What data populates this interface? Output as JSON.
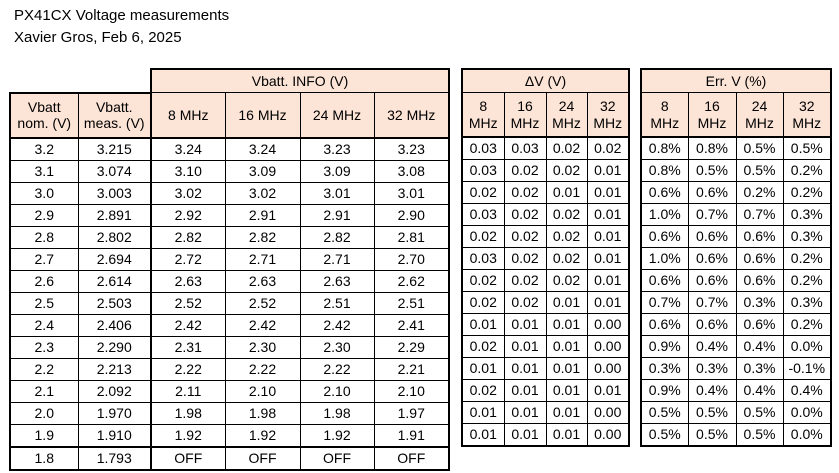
{
  "page": {
    "title": "PX41CX Voltage measurements",
    "subtitle": "Xavier Gros, Feb 6, 2025"
  },
  "colors": {
    "header_fill": "#FCE4D6",
    "border": "#000000",
    "text": "#000000",
    "background": "#FFFFFF"
  },
  "tables": {
    "main": {
      "group_header": "Vbatt. INFO (V)",
      "col_headers": [
        "Vbatt\nnom. (V)",
        "Vbatt.\nmeas. (V)",
        "8 MHz",
        "16 MHz",
        "24 MHz",
        "32 MHz"
      ],
      "rows": [
        [
          "3.2",
          "3.215",
          "3.24",
          "3.24",
          "3.23",
          "3.23"
        ],
        [
          "3.1",
          "3.074",
          "3.10",
          "3.09",
          "3.09",
          "3.08"
        ],
        [
          "3.0",
          "3.003",
          "3.02",
          "3.02",
          "3.01",
          "3.01"
        ],
        [
          "2.9",
          "2.891",
          "2.92",
          "2.91",
          "2.91",
          "2.90"
        ],
        [
          "2.8",
          "2.802",
          "2.82",
          "2.82",
          "2.82",
          "2.81"
        ],
        [
          "2.7",
          "2.694",
          "2.72",
          "2.71",
          "2.71",
          "2.70"
        ],
        [
          "2.6",
          "2.614",
          "2.63",
          "2.63",
          "2.63",
          "2.62"
        ],
        [
          "2.5",
          "2.503",
          "2.52",
          "2.52",
          "2.51",
          "2.51"
        ],
        [
          "2.4",
          "2.406",
          "2.42",
          "2.42",
          "2.42",
          "2.41"
        ],
        [
          "2.3",
          "2.290",
          "2.31",
          "2.30",
          "2.30",
          "2.29"
        ],
        [
          "2.2",
          "2.213",
          "2.22",
          "2.22",
          "2.22",
          "2.21"
        ],
        [
          "2.1",
          "2.092",
          "2.11",
          "2.10",
          "2.10",
          "2.10"
        ],
        [
          "2.0",
          "1.970",
          "1.98",
          "1.98",
          "1.98",
          "1.97"
        ],
        [
          "1.9",
          "1.910",
          "1.92",
          "1.92",
          "1.92",
          "1.91"
        ],
        [
          "1.8",
          "1.793",
          "OFF",
          "OFF",
          "OFF",
          "OFF"
        ]
      ]
    },
    "delta": {
      "group_header": "ΔV (V)",
      "col_headers": [
        "8\nMHz",
        "16\nMHz",
        "24\nMHz",
        "32\nMHz"
      ],
      "rows": [
        [
          "0.03",
          "0.03",
          "0.02",
          "0.02"
        ],
        [
          "0.03",
          "0.02",
          "0.02",
          "0.01"
        ],
        [
          "0.02",
          "0.02",
          "0.01",
          "0.01"
        ],
        [
          "0.03",
          "0.02",
          "0.02",
          "0.01"
        ],
        [
          "0.02",
          "0.02",
          "0.02",
          "0.01"
        ],
        [
          "0.03",
          "0.02",
          "0.02",
          "0.01"
        ],
        [
          "0.02",
          "0.02",
          "0.02",
          "0.01"
        ],
        [
          "0.02",
          "0.02",
          "0.01",
          "0.01"
        ],
        [
          "0.01",
          "0.01",
          "0.01",
          "0.00"
        ],
        [
          "0.02",
          "0.01",
          "0.01",
          "0.00"
        ],
        [
          "0.01",
          "0.01",
          "0.01",
          "0.00"
        ],
        [
          "0.02",
          "0.01",
          "0.01",
          "0.01"
        ],
        [
          "0.01",
          "0.01",
          "0.01",
          "0.00"
        ],
        [
          "0.01",
          "0.01",
          "0.01",
          "0.00"
        ]
      ]
    },
    "error": {
      "group_header": "Err. V (%)",
      "col_headers": [
        "8\nMHz",
        "16\nMHz",
        "24\nMHz",
        "32\nMHz"
      ],
      "rows": [
        [
          "0.8%",
          "0.8%",
          "0.5%",
          "0.5%"
        ],
        [
          "0.8%",
          "0.5%",
          "0.5%",
          "0.2%"
        ],
        [
          "0.6%",
          "0.6%",
          "0.2%",
          "0.2%"
        ],
        [
          "1.0%",
          "0.7%",
          "0.7%",
          "0.3%"
        ],
        [
          "0.6%",
          "0.6%",
          "0.6%",
          "0.3%"
        ],
        [
          "1.0%",
          "0.6%",
          "0.6%",
          "0.2%"
        ],
        [
          "0.6%",
          "0.6%",
          "0.6%",
          "0.2%"
        ],
        [
          "0.7%",
          "0.7%",
          "0.3%",
          "0.3%"
        ],
        [
          "0.6%",
          "0.6%",
          "0.6%",
          "0.2%"
        ],
        [
          "0.9%",
          "0.4%",
          "0.4%",
          "0.0%"
        ],
        [
          "0.3%",
          "0.3%",
          "0.3%",
          "-0.1%"
        ],
        [
          "0.9%",
          "0.4%",
          "0.4%",
          "0.4%"
        ],
        [
          "0.5%",
          "0.5%",
          "0.5%",
          "0.0%"
        ],
        [
          "0.5%",
          "0.5%",
          "0.5%",
          "0.0%"
        ]
      ]
    }
  }
}
